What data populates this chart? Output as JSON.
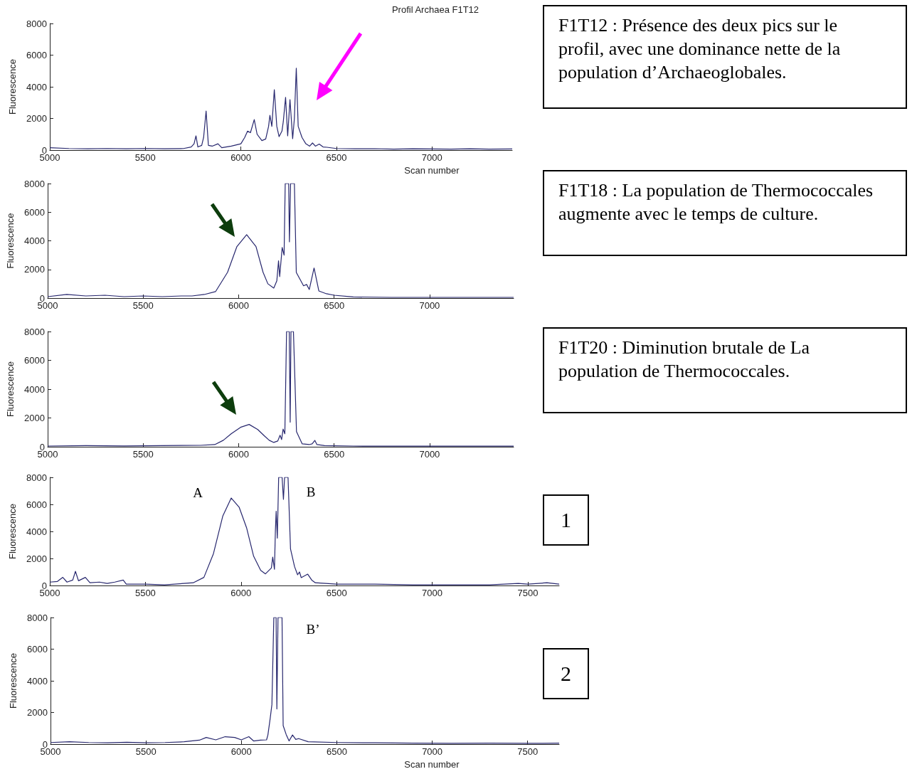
{
  "chart_data": [
    {
      "type": "line",
      "title": "Profil Archaea F1T12",
      "xlabel": "Scan number",
      "ylabel": "Fluorescence",
      "color": "#27276e",
      "marker": "none",
      "xlim": [
        5000,
        7420
      ],
      "xticks": [
        5000,
        5500,
        6000,
        6500,
        7000
      ],
      "ylim": [
        0,
        8000
      ],
      "yticks": [
        0,
        2000,
        4000,
        6000,
        8000
      ],
      "x": [
        5000,
        5100,
        5200,
        5300,
        5400,
        5500,
        5600,
        5700,
        5740,
        5755,
        5765,
        5775,
        5795,
        5805,
        5818,
        5830,
        5850,
        5880,
        5900,
        5950,
        6000,
        6020,
        6035,
        6050,
        6070,
        6085,
        6110,
        6130,
        6145,
        6152,
        6162,
        6175,
        6188,
        6200,
        6215,
        6222,
        6234,
        6245,
        6257,
        6271,
        6280,
        6290,
        6300,
        6320,
        6340,
        6360,
        6375,
        6390,
        6410,
        6430,
        6450,
        6500,
        6600,
        6700,
        6800,
        6900,
        7000,
        7100,
        7200,
        7300,
        7420
      ],
      "values": [
        150,
        100,
        80,
        100,
        80,
        100,
        80,
        100,
        200,
        400,
        900,
        200,
        300,
        800,
        2470,
        300,
        250,
        400,
        150,
        250,
        400,
        800,
        1200,
        1100,
        1930,
        1000,
        600,
        700,
        1500,
        2200,
        1500,
        3820,
        1500,
        850,
        1200,
        1800,
        3330,
        900,
        3190,
        720,
        2000,
        5170,
        1500,
        800,
        400,
        250,
        450,
        250,
        380,
        200,
        180,
        100,
        80,
        90,
        60,
        80,
        70,
        60,
        80,
        60,
        70
      ],
      "annotations": [
        "F1T12 : Présence des deux pics sur le profil, avec une dominance nette de la population d’Archaeoglobales."
      ]
    },
    {
      "type": "line",
      "ylabel": "Fluorescence",
      "color": "#27276e",
      "marker": "none",
      "xlim": [
        5000,
        7440
      ],
      "xticks": [
        5000,
        5500,
        6000,
        6500,
        7000
      ],
      "ylim": [
        0,
        8000
      ],
      "yticks": [
        0,
        2000,
        4000,
        6000,
        8000
      ],
      "x": [
        5000,
        5100,
        5200,
        5300,
        5400,
        5500,
        5600,
        5700,
        5756,
        5820,
        5879,
        5942,
        5991,
        6042,
        6091,
        6128,
        6153,
        6184,
        6200,
        6209,
        6215,
        6228,
        6238,
        6244,
        6262,
        6266,
        6272,
        6292,
        6302,
        6340,
        6356,
        6370,
        6395,
        6420,
        6460,
        6500,
        6600,
        6800,
        7000,
        7200,
        7440
      ],
      "values": [
        100,
        250,
        150,
        200,
        100,
        150,
        100,
        150,
        150,
        250,
        450,
        1800,
        3600,
        4430,
        3600,
        1800,
        1000,
        700,
        1200,
        2600,
        1500,
        3530,
        3000,
        8000,
        8000,
        3930,
        8000,
        8000,
        1790,
        860,
        950,
        600,
        2100,
        500,
        300,
        200,
        80,
        50,
        50,
        50,
        50
      ],
      "annotations": [
        "F1T18 : La population de Thermococcales augmente avec le temps de culture."
      ]
    },
    {
      "type": "line",
      "ylabel": "Fluorescence",
      "color": "#27276e",
      "marker": "none",
      "xlim": [
        5000,
        7440
      ],
      "xticks": [
        5000,
        5500,
        6000,
        6500,
        7000
      ],
      "ylim": [
        0,
        8000
      ],
      "yticks": [
        0,
        2000,
        4000,
        6000,
        8000
      ],
      "x": [
        5000,
        5200,
        5400,
        5600,
        5800,
        5875,
        5920,
        5961,
        6010,
        6055,
        6100,
        6136,
        6160,
        6184,
        6205,
        6217,
        6225,
        6233,
        6242,
        6251,
        6265,
        6270,
        6274,
        6287,
        6303,
        6333,
        6370,
        6385,
        6399,
        6410,
        6450,
        6600,
        6800,
        7000,
        7200,
        7440
      ],
      "values": [
        50,
        80,
        60,
        80,
        100,
        150,
        450,
        900,
        1350,
        1550,
        1200,
        740,
        450,
        300,
        400,
        800,
        500,
        1230,
        900,
        8000,
        8000,
        1710,
        8000,
        8000,
        1050,
        200,
        150,
        200,
        440,
        150,
        80,
        50,
        40,
        40,
        40,
        40
      ],
      "annotations": [
        "F1T20 : Diminution brutale de La population de Thermococcales."
      ]
    },
    {
      "type": "line",
      "ylabel": "Fluorescence",
      "color": "#27276e",
      "marker": "none",
      "xlim": [
        5000,
        7664
      ],
      "xticks": [
        5000,
        5500,
        6000,
        6500,
        7000,
        7500
      ],
      "ylim": [
        0,
        8000
      ],
      "yticks": [
        0,
        2000,
        4000,
        6000,
        8000
      ],
      "x": [
        5000,
        5040,
        5068,
        5090,
        5120,
        5134,
        5150,
        5186,
        5210,
        5260,
        5300,
        5340,
        5384,
        5400,
        5500,
        5600,
        5700,
        5750,
        5806,
        5856,
        5905,
        5949,
        5990,
        6029,
        6066,
        6103,
        6128,
        6159,
        6166,
        6175,
        6180,
        6184,
        6190,
        6197,
        6215,
        6222,
        6228,
        6246,
        6259,
        6280,
        6296,
        6306,
        6315,
        6349,
        6370,
        6389,
        6500,
        6700,
        6900,
        7100,
        7300,
        7450,
        7500,
        7600,
        7664
      ],
      "values": [
        250,
        300,
        600,
        250,
        400,
        1050,
        350,
        600,
        200,
        250,
        150,
        250,
        400,
        100,
        100,
        50,
        150,
        200,
        600,
        2360,
        5150,
        6470,
        5800,
        4280,
        2170,
        1120,
        860,
        1300,
        2100,
        1200,
        4100,
        5500,
        3500,
        8000,
        8000,
        6370,
        8000,
        8000,
        2700,
        1400,
        790,
        1000,
        580,
        840,
        400,
        200,
        100,
        100,
        50,
        50,
        50,
        150,
        100,
        200,
        100
      ],
      "annotations": [
        "A",
        "B",
        "1"
      ]
    },
    {
      "type": "line",
      "xlabel": "Scan number",
      "ylabel": "Fluorescence",
      "color": "#27276e",
      "marker": "none",
      "xlim": [
        5000,
        7665
      ],
      "xticks": [
        5000,
        5500,
        6000,
        6500,
        7000,
        7500
      ],
      "ylim": [
        0,
        8000
      ],
      "yticks": [
        0,
        2000,
        4000,
        6000,
        8000
      ],
      "x": [
        5000,
        5100,
        5200,
        5300,
        5400,
        5500,
        5600,
        5700,
        5780,
        5816,
        5866,
        5915,
        5965,
        6000,
        6039,
        6064,
        6100,
        6132,
        6139,
        6151,
        6160,
        6170,
        6182,
        6186,
        6192,
        6213,
        6219,
        6235,
        6250,
        6268,
        6285,
        6300,
        6350,
        6500,
        6700,
        6900,
        7100,
        7300,
        7500,
        7665
      ],
      "values": [
        100,
        150,
        100,
        80,
        120,
        80,
        100,
        150,
        250,
        420,
        270,
        470,
        420,
        270,
        470,
        200,
        250,
        270,
        580,
        1620,
        2500,
        8000,
        8000,
        2220,
        8000,
        8000,
        1170,
        600,
        200,
        580,
        300,
        350,
        150,
        100,
        80,
        60,
        50,
        60,
        50,
        60
      ],
      "annotations": [
        "B’",
        "2"
      ]
    }
  ]
}
